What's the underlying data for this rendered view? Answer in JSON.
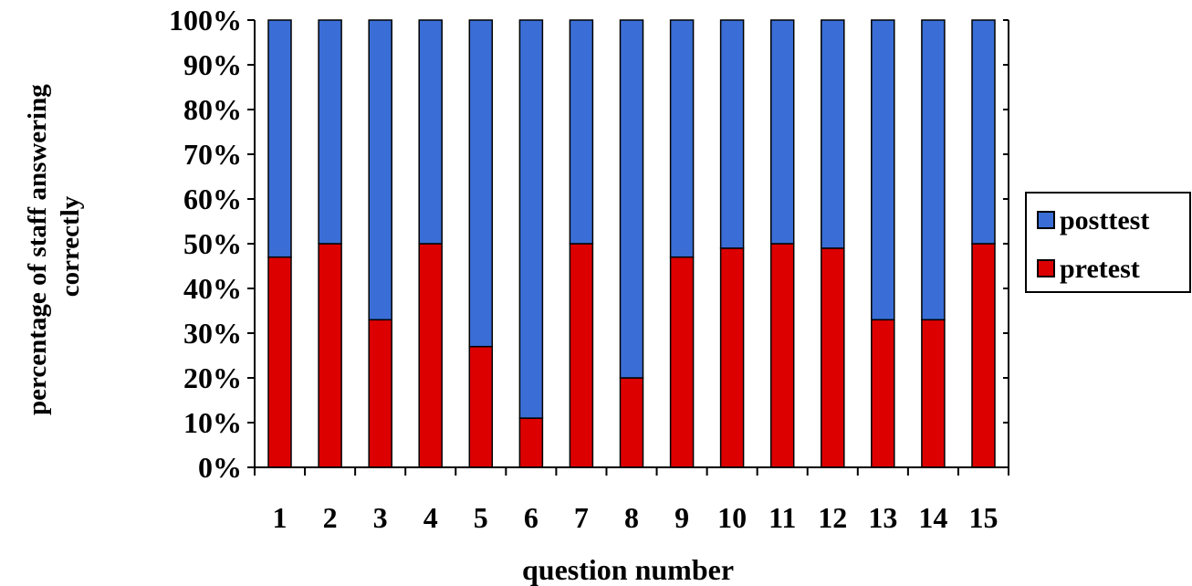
{
  "chart_data": {
    "type": "bar",
    "stacked": true,
    "percent_stacked": true,
    "categories": [
      "1",
      "2",
      "3",
      "4",
      "5",
      "6",
      "7",
      "8",
      "9",
      "10",
      "11",
      "12",
      "13",
      "14",
      "15"
    ],
    "series": [
      {
        "name": "pretest",
        "color": "#dd0000",
        "values": [
          47,
          50,
          33,
          50,
          27,
          11,
          50,
          20,
          47,
          49,
          50,
          49,
          33,
          33,
          50
        ]
      },
      {
        "name": "posttest",
        "color": "#3a6ed6",
        "values": [
          53,
          50,
          67,
          50,
          73,
          89,
          50,
          80,
          53,
          51,
          50,
          51,
          67,
          67,
          50
        ]
      }
    ],
    "xlabel": "question number",
    "ylabel_lines": [
      "percentage of staff answering",
      "correctly"
    ],
    "yticks": [
      "0%",
      "10%",
      "20%",
      "30%",
      "40%",
      "50%",
      "60%",
      "70%",
      "80%",
      "90%",
      "100%"
    ],
    "ylim": [
      0,
      100
    ],
    "grid": false,
    "legend": {
      "placement": "right",
      "entries": [
        "posttest",
        "pretest"
      ]
    }
  }
}
